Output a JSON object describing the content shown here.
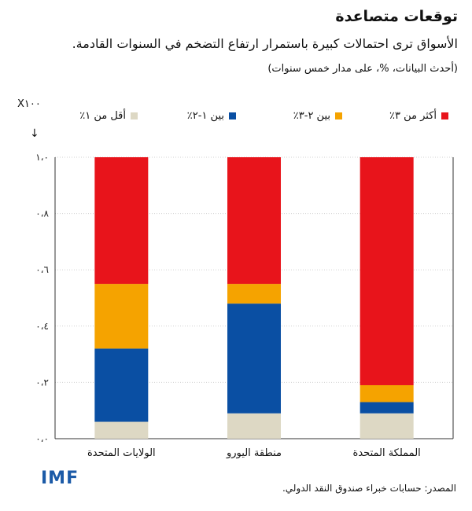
{
  "header": {
    "title": "توقعات متصاعدة",
    "subtitle": "الأسواق ترى احتمالات كبيرة باستمرار ارتفاع التضخم في السنوات القادمة.",
    "note": "(أحدث البيانات، %، على مدار خمس سنوات)"
  },
  "scale_label": "X١٠٠",
  "footer": {
    "logo_text": "IMF",
    "source": "المصدر: حسابات خبراء صندوق النقد الدولي."
  },
  "chart_data": {
    "type": "bar",
    "stacked": true,
    "categories": [
      "الولايات المتحدة",
      "منطقة اليورو",
      "المملكة المتحدة"
    ],
    "series": [
      {
        "name": "أقل من ١٪",
        "color": "#ddd8c4",
        "values": [
          0.06,
          0.09,
          0.09
        ]
      },
      {
        "name": "بين ١-٢٪",
        "color": "#0a4fa3",
        "values": [
          0.26,
          0.39,
          0.04
        ]
      },
      {
        "name": "بين ٢-٣٪",
        "color": "#f5a300",
        "values": [
          0.23,
          0.07,
          0.06
        ]
      },
      {
        "name": "أكثر من ٣٪",
        "color": "#e8141b",
        "values": [
          0.45,
          0.45,
          0.81
        ]
      }
    ],
    "ylim": [
      0,
      1.0
    ],
    "yticks": [
      0,
      0.2,
      0.4,
      0.6,
      0.8,
      1.0
    ],
    "ytick_labels": [
      "٠،٠",
      "٠،٢",
      "٠،٤",
      "٠،٦",
      "٠،٨",
      "١،٠"
    ],
    "grid": true,
    "legend": "top"
  }
}
